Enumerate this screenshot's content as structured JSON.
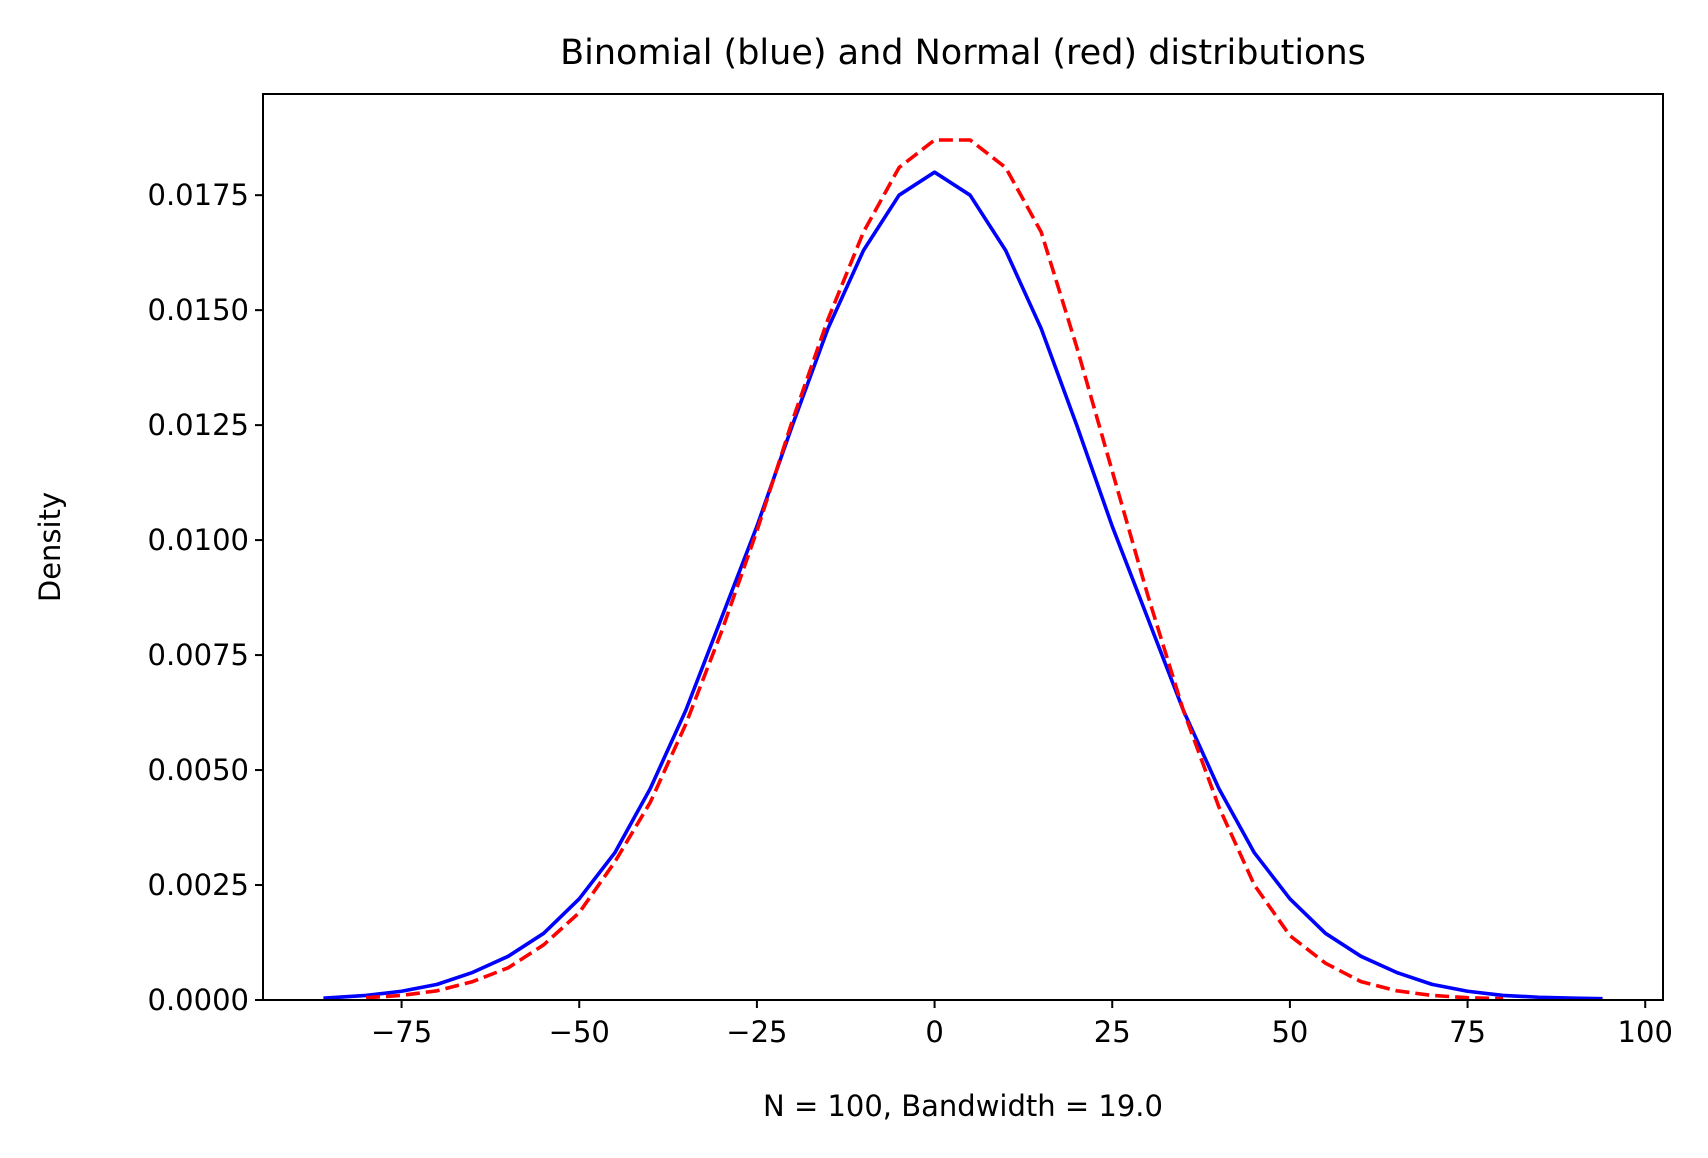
{
  "chart_data": {
    "type": "line",
    "title": "Binomial (blue) and Normal (red) distributions",
    "xlabel": "N = 100, Bandwidth = 19.0",
    "ylabel": "Density",
    "xlim": [
      -94.5,
      102.5
    ],
    "ylim": [
      0,
      0.0197
    ],
    "x_ticks": [
      -75,
      -50,
      -25,
      0,
      25,
      50,
      75,
      100
    ],
    "x_tick_labels": [
      "−75",
      "−50",
      "−25",
      "0",
      "25",
      "50",
      "75",
      "100"
    ],
    "y_ticks": [
      0,
      0.0025,
      0.005,
      0.0075,
      0.01,
      0.0125,
      0.015,
      0.0175
    ],
    "y_tick_labels": [
      "0.0000",
      "0.0025",
      "0.0050",
      "0.0075",
      "0.0100",
      "0.0125",
      "0.0150",
      "0.0175"
    ],
    "grid": false,
    "legend": "none",
    "series": [
      {
        "color": "#0000ff",
        "style": "solid",
        "x": [
          -86,
          -80,
          -75,
          -70,
          -65,
          -60,
          -55,
          -50,
          -45,
          -40,
          -35,
          -30,
          -25,
          -20,
          -15,
          -10,
          -5,
          0,
          5,
          10,
          15,
          20,
          25,
          30,
          35,
          40,
          45,
          50,
          55,
          60,
          65,
          70,
          75,
          80,
          85,
          90,
          94
        ],
        "y": [
          4e-05,
          0.0001,
          0.00019,
          0.00034,
          0.0006,
          0.00095,
          0.00145,
          0.0022,
          0.0032,
          0.0046,
          0.0063,
          0.0083,
          0.0103,
          0.0125,
          0.0146,
          0.0163,
          0.0175,
          0.018,
          0.0175,
          0.0163,
          0.0146,
          0.0125,
          0.0103,
          0.0083,
          0.0063,
          0.0046,
          0.0032,
          0.0022,
          0.00145,
          0.00095,
          0.0006,
          0.00034,
          0.00019,
          0.0001,
          6e-05,
          4e-05,
          3e-05
        ]
      },
      {
        "color": "#ff0000",
        "style": "dashed",
        "x": [
          -80,
          -75,
          -70,
          -65,
          -60,
          -55,
          -50,
          -45,
          -40,
          -35,
          -30,
          -25,
          -20,
          -15,
          -10,
          -5,
          0,
          5,
          10,
          15,
          20,
          25,
          30,
          35,
          40,
          45,
          50,
          55,
          60,
          65,
          70,
          75,
          80
        ],
        "y": [
          5e-05,
          0.0001,
          0.0002,
          0.0004,
          0.0007,
          0.0012,
          0.0019,
          0.003,
          0.0043,
          0.006,
          0.008,
          0.0102,
          0.0126,
          0.0148,
          0.0167,
          0.0181,
          0.0187,
          0.0187,
          0.0181,
          0.0167,
          0.0142,
          0.0115,
          0.0088,
          0.0063,
          0.0042,
          0.0025,
          0.0014,
          0.0008,
          0.0004,
          0.0002,
          0.0001,
          5e-05,
          3e-05
        ]
      }
    ]
  }
}
